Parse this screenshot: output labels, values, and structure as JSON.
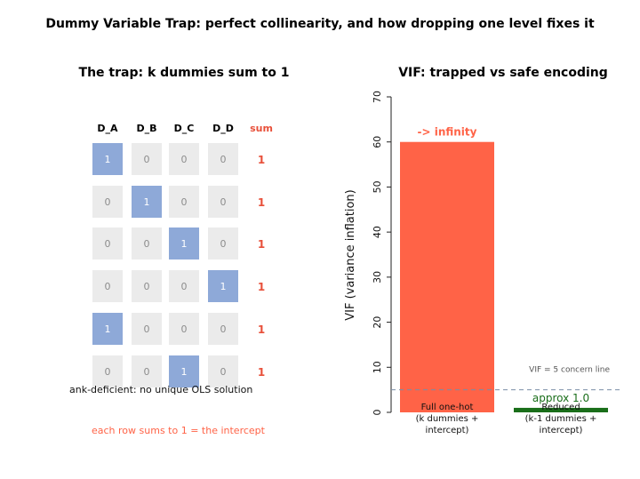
{
  "figure": {
    "suptitle": "Dummy Variable Trap: perfect collinearity, and how dropping one level fixes it"
  },
  "colors": {
    "one_cell": "#8ea9d8",
    "zero_cell": "#ebebeb",
    "one_text": "#ffffff",
    "zero_text": "#8c8c8c",
    "sum_red": "#e8503a",
    "bar_red": "#ff6347",
    "bar_green": "#1a6e1a",
    "refline": "#7a8ea6",
    "note_dark": "#111111",
    "note_red": "#ff6347"
  },
  "matrix_panel": {
    "title": "The trap: k dummies sum to 1",
    "columns": [
      "D_A",
      "D_B",
      "D_C",
      "D_D"
    ],
    "sum_header": "sum",
    "rows": [
      {
        "cells": [
          "1",
          "0",
          "0",
          "0"
        ],
        "sum": "1"
      },
      {
        "cells": [
          "0",
          "1",
          "0",
          "0"
        ],
        "sum": "1"
      },
      {
        "cells": [
          "0",
          "0",
          "1",
          "0"
        ],
        "sum": "1"
      },
      {
        "cells": [
          "0",
          "0",
          "0",
          "1"
        ],
        "sum": "1"
      },
      {
        "cells": [
          "1",
          "0",
          "0",
          "0"
        ],
        "sum": "1"
      },
      {
        "cells": [
          "0",
          "0",
          "1",
          "0"
        ],
        "sum": "1"
      }
    ],
    "note_deficient": "ank-deficient: no unique OLS solution",
    "note_intercept": "each row sums to 1 = the intercept"
  },
  "chart_data": {
    "type": "bar",
    "title": "VIF: trapped vs safe encoding",
    "ylabel": "VIF (variance inflation)",
    "xlabel": "",
    "ylim": [
      0,
      70
    ],
    "yticks": [
      0,
      10,
      20,
      30,
      40,
      50,
      60,
      70
    ],
    "categories": [
      [
        "Full one-hot",
        "(k dummies +",
        "intercept)"
      ],
      [
        "Reduced",
        "(k-1 dummies +",
        "intercept)"
      ]
    ],
    "values": [
      60,
      1
    ],
    "bar_annotations": [
      "-> infinity",
      "approx 1.0"
    ],
    "reference_line": {
      "y": 5,
      "label": "VIF = 5 concern line",
      "style": "dashed"
    },
    "grid": false,
    "legend": "none"
  }
}
